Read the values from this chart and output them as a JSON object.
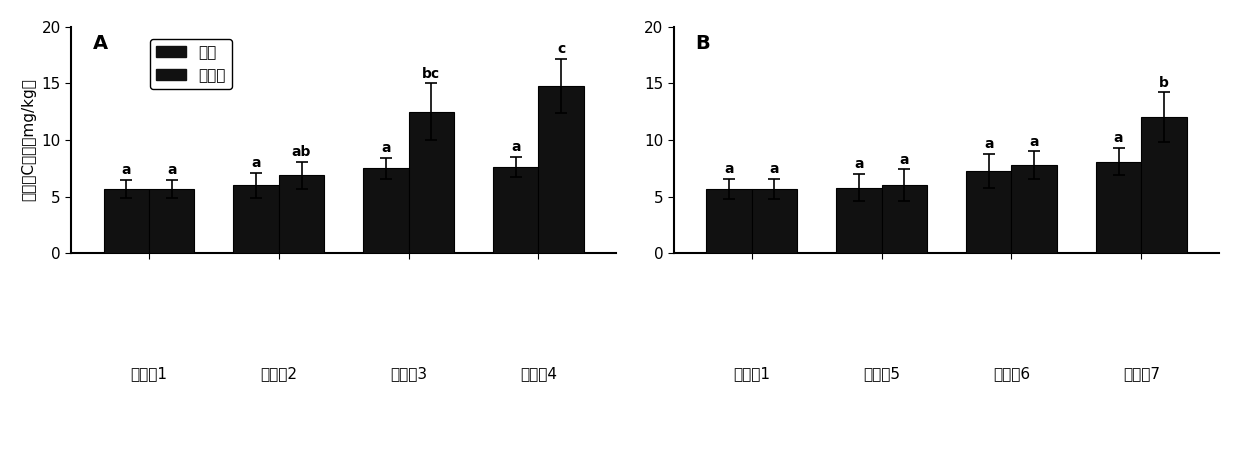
{
  "panel_A": {
    "label": "A",
    "categories": [
      "对比奷1",
      "实施奷2",
      "实施奷3",
      "实施奷4"
    ],
    "root_values": [
      5.7,
      6.0,
      7.5,
      7.6
    ],
    "shoot_values": [
      5.7,
      6.9,
      12.5,
      14.8
    ],
    "root_errors": [
      0.8,
      1.1,
      0.9,
      0.9
    ],
    "shoot_errors": [
      0.8,
      1.2,
      2.5,
      2.4
    ],
    "root_labels": [
      "a",
      "a",
      "a",
      "a"
    ],
    "shoot_labels": [
      "a",
      "ab",
      "bc",
      "c"
    ]
  },
  "panel_B": {
    "label": "B",
    "categories": [
      "对比奷1",
      "实施奷5",
      "实施奷6",
      "实施奷7"
    ],
    "root_values": [
      5.7,
      5.8,
      7.3,
      8.1
    ],
    "shoot_values": [
      5.7,
      6.0,
      7.8,
      12.0
    ],
    "root_errors": [
      0.9,
      1.2,
      1.5,
      1.2
    ],
    "shoot_errors": [
      0.9,
      1.4,
      1.2,
      2.2
    ],
    "root_labels": [
      "a",
      "a",
      "a",
      "a"
    ],
    "shoot_labels": [
      "a",
      "a",
      "a",
      "b"
    ]
  },
  "ylabel": "组织内C含量（mg/kg）",
  "ylim": [
    0,
    20
  ],
  "yticks": [
    0,
    5,
    10,
    15,
    20
  ],
  "bar_color": "#111111",
  "bar_width": 0.35,
  "legend_labels": [
    "根部",
    "地上部"
  ],
  "background_color": "#ffffff",
  "label_fontsize": 11,
  "tick_fontsize": 11,
  "annotation_fontsize": 10,
  "panel_label_fontsize": 14
}
